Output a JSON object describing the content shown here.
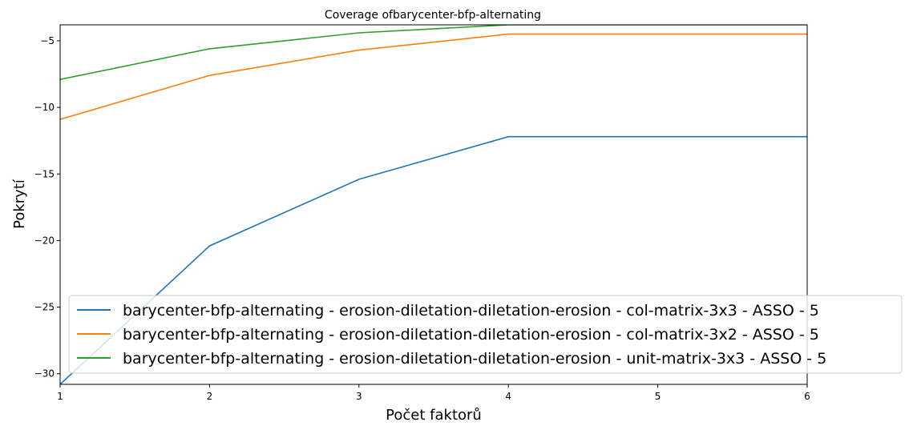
{
  "chart_data": {
    "type": "line",
    "title": "Coverage ofbarycenter-bfp-alternating",
    "xlabel": "Počet faktorů",
    "ylabel": "Pokrytí",
    "x": [
      1,
      2,
      3,
      4,
      5,
      6
    ],
    "xlim": [
      1,
      6
    ],
    "ylim": [
      -30.8,
      -3.8
    ],
    "xticks": [
      "1",
      "2",
      "3",
      "4",
      "5",
      "6"
    ],
    "yticks": [
      -30,
      -25,
      -20,
      -15,
      -10,
      -5
    ],
    "ytick_labels": [
      "−30",
      "−25",
      "−20",
      "−15",
      "−10",
      "−5"
    ],
    "grid": false,
    "legend_position": "lower-right",
    "series": [
      {
        "name": "barycenter-bfp-alternating - erosion-diletation-diletation-erosion - col-matrix-3x3 - ASSO - 5",
        "color": "#1f77b4",
        "values": [
          -30.8,
          -20.4,
          -15.4,
          -12.2,
          -12.2,
          -12.2
        ]
      },
      {
        "name": "barycenter-bfp-alternating - erosion-diletation-diletation-erosion - col-matrix-3x2 - ASSO - 5",
        "color": "#ff7f0e",
        "values": [
          -10.9,
          -7.6,
          -5.7,
          -4.5,
          -4.5,
          -4.5
        ]
      },
      {
        "name": "barycenter-bfp-alternating - erosion-diletation-diletation-erosion - unit-matrix-3x3 - ASSO - 5",
        "color": "#2ca02c",
        "values": [
          -7.9,
          -5.6,
          -4.4,
          -3.8,
          -3.8,
          -3.8
        ]
      }
    ]
  }
}
